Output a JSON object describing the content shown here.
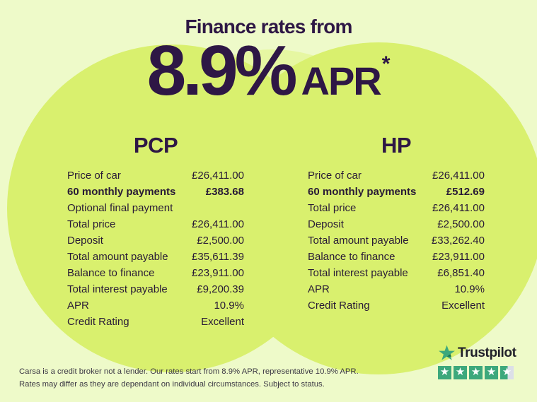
{
  "hero": {
    "title": "Finance rates from",
    "rate": "8.9%",
    "apr_label": "APR",
    "asterisk": "*"
  },
  "columns": [
    {
      "title": "PCP",
      "rows": [
        {
          "label": "Price of car",
          "value": "£26,411.00",
          "bold": false
        },
        {
          "label": "60 monthly payments",
          "value": "£383.68",
          "bold": true
        },
        {
          "label": "Optional final payment",
          "value": "",
          "bold": false
        },
        {
          "label": "Total price",
          "value": "£26,411.00",
          "bold": false
        },
        {
          "label": "Deposit",
          "value": "£2,500.00",
          "bold": false
        },
        {
          "label": "Total amount payable",
          "value": "£35,611.39",
          "bold": false
        },
        {
          "label": "Balance to finance",
          "value": "£23,911.00",
          "bold": false
        },
        {
          "label": "Total interest payable",
          "value": "£9,200.39",
          "bold": false
        },
        {
          "label": "APR",
          "value": "10.9%",
          "bold": false
        },
        {
          "label": "Credit Rating",
          "value": "Excellent",
          "bold": false
        }
      ]
    },
    {
      "title": "HP",
      "rows": [
        {
          "label": "Price of car",
          "value": "£26,411.00",
          "bold": false
        },
        {
          "label": "60 monthly payments",
          "value": "£512.69",
          "bold": true
        },
        {
          "label": "Total price",
          "value": "£26,411.00",
          "bold": false
        },
        {
          "label": "Deposit",
          "value": "£2,500.00",
          "bold": false
        },
        {
          "label": "Total amount payable",
          "value": "£33,262.40",
          "bold": false
        },
        {
          "label": "Balance to finance",
          "value": "£23,911.00",
          "bold": false
        },
        {
          "label": "Total interest payable",
          "value": "£6,851.40",
          "bold": false
        },
        {
          "label": "APR",
          "value": "10.9%",
          "bold": false
        },
        {
          "label": "Credit Rating",
          "value": "Excellent",
          "bold": false
        }
      ]
    }
  ],
  "footer": {
    "line1": "Carsa is a credit broker not a lender. Our rates start from 8.9% APR, representative 10.9% APR.",
    "line2": "Rates may differ as they are dependant on individual circumstances. Subject to status."
  },
  "trustpilot": {
    "brand": "Trustpilot",
    "rating": 4.5,
    "stars_total": 5,
    "star_glyph": "★"
  },
  "colors": {
    "background": "#eefac9",
    "blob_green": "#d9f06e",
    "blob_light": "#e6f7a2",
    "heading_purple": "#2e1745",
    "body_purple": "#281a36",
    "footer_text": "#3b3844",
    "trustpilot_green": "#3da87c",
    "trustpilot_logo_shadow": "#19714f",
    "trustpilot_text": "#20202a",
    "star_empty": "#dcdfe8"
  }
}
